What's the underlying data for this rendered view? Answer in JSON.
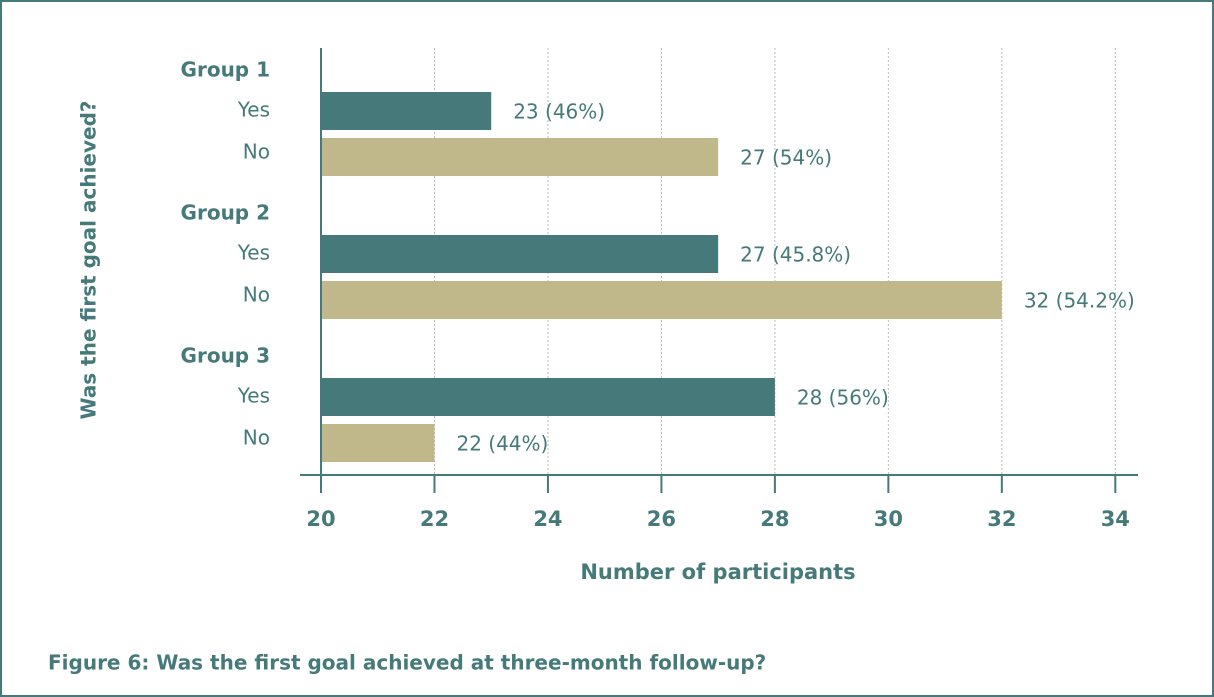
{
  "chart_data": {
    "type": "bar",
    "orientation": "horizontal",
    "title": "Figure 6: Was the first goal achieved at three-month follow-up?",
    "xlabel": "Number of participants",
    "ylabel": "Was the first goal achieved?",
    "groups": [
      {
        "name": "Group 1",
        "categories": [
          "Yes",
          "No"
        ],
        "values": [
          23,
          27
        ],
        "value_labels": [
          "23 (46%)",
          "27 (54%)"
        ]
      },
      {
        "name": "Group 2",
        "categories": [
          "Yes",
          "No"
        ],
        "values": [
          27,
          32
        ],
        "value_labels": [
          "27 (45.8%)",
          "32 (54.2%)"
        ]
      },
      {
        "name": "Group 3",
        "categories": [
          "Yes",
          "No"
        ],
        "values": [
          28,
          22
        ],
        "value_labels": [
          "28 (56%)",
          "22 (44%)"
        ]
      }
    ],
    "colors": [
      "#467a7a",
      "#c0b88a"
    ],
    "xlim": [
      20,
      34.4
    ],
    "xticks": [
      20,
      22,
      24,
      26,
      28,
      30,
      32,
      34
    ],
    "grid": true
  }
}
